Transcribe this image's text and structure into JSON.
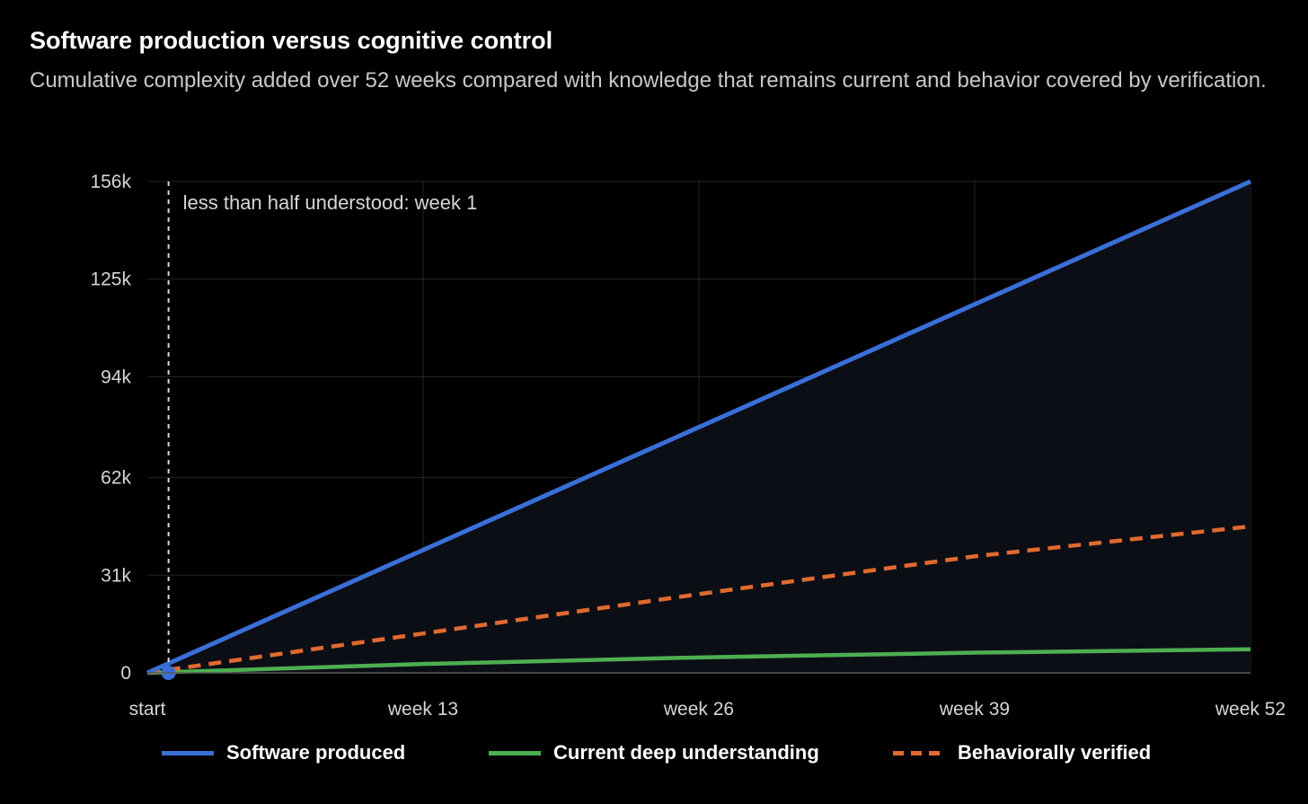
{
  "header": {
    "title": "Software production versus cognitive control",
    "subtitle": "Cumulative complexity added over 52 weeks compared with knowledge that remains current and behavior covered by verification."
  },
  "colors": {
    "background": "#000000",
    "grid": "#262626",
    "software": "#3a6fd8",
    "understanding": "#4caf50",
    "verified": "#e06a30",
    "area_fill": "#0c0e16"
  },
  "chart_data": {
    "type": "line",
    "x": [
      0,
      13,
      26,
      39,
      52
    ],
    "x_tick_labels": [
      "start",
      "week 13",
      "week 26",
      "week 39",
      "week 52"
    ],
    "xlim": [
      0,
      52
    ],
    "ylim": [
      0,
      156000
    ],
    "y_ticks": [
      0,
      31000,
      62000,
      94000,
      125000,
      156000
    ],
    "y_tick_labels": [
      "0",
      "31k",
      "62k",
      "94k",
      "125k",
      "156k"
    ],
    "grid": true,
    "legend_position": "bottom",
    "series": [
      {
        "name": "Software produced",
        "style": "solid",
        "x": [
          0,
          13,
          26,
          39,
          52
        ],
        "values": [
          0,
          39000,
          78000,
          117000,
          156000
        ]
      },
      {
        "name": "Current deep understanding",
        "style": "solid",
        "x": [
          0,
          13,
          26,
          39,
          52
        ],
        "values": [
          0,
          2800,
          4900,
          6400,
          7500
        ]
      },
      {
        "name": "Behaviorally verified",
        "style": "dashed",
        "x": [
          0,
          13,
          26,
          39,
          52
        ],
        "values": [
          0,
          12500,
          25000,
          37000,
          46500
        ]
      }
    ],
    "annotation": {
      "label": "less than half understood: week 1",
      "x": 1
    }
  }
}
